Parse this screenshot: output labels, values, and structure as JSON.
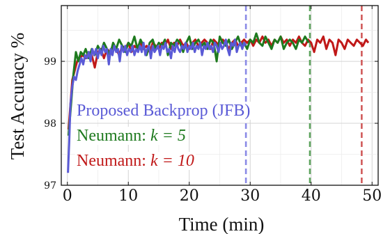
{
  "chart_data": {
    "type": "line",
    "title": "",
    "xlabel": "Time (min)",
    "ylabel": "Test Accuracy %",
    "xlim": [
      -1,
      51
    ],
    "ylim": [
      97,
      99.9
    ],
    "x_ticks": [
      0,
      10,
      20,
      30,
      40,
      50
    ],
    "y_ticks": [
      97,
      98,
      99
    ],
    "grid": true,
    "legend_position": "bottom-left",
    "legend_entries": [
      {
        "prefix": "Proposed Backprop (JFB)",
        "math": "",
        "color": "#5a5ad6"
      },
      {
        "prefix": "Neumann: ",
        "math": "k = 5",
        "color": "#1e7a1e"
      },
      {
        "prefix": "Neumann: ",
        "math": "k = 10",
        "color": "#c01818"
      }
    ],
    "vertical_lines": [
      {
        "x": 29.3,
        "color": "#8a8ae6",
        "series": "Proposed Backprop (JFB)"
      },
      {
        "x": 39.8,
        "color": "#5da35d",
        "series": "Neumann: k = 5"
      },
      {
        "x": 48.3,
        "color": "#d05a5a",
        "series": "Neumann: k = 10"
      }
    ],
    "series": [
      {
        "name": "Neumann: k = 10",
        "color": "#c01818",
        "points": [
          [
            0.2,
            97.9
          ],
          [
            0.5,
            98.3
          ],
          [
            0.8,
            98.7
          ],
          [
            1.2,
            98.85
          ],
          [
            1.6,
            99.0
          ],
          [
            2.0,
            99.05
          ],
          [
            2.5,
            99.1
          ],
          [
            3.0,
            99.05
          ],
          [
            3.5,
            99.15
          ],
          [
            4.0,
            99.1
          ],
          [
            4.5,
            98.9
          ],
          [
            5.0,
            99.15
          ],
          [
            5.5,
            99.2
          ],
          [
            6.0,
            99.05
          ],
          [
            6.5,
            99.2
          ],
          [
            7.0,
            99.15
          ],
          [
            7.5,
            99.25
          ],
          [
            8.0,
            99.2
          ],
          [
            8.5,
            99.1
          ],
          [
            9.0,
            99.25
          ],
          [
            9.5,
            99.2
          ],
          [
            10.0,
            99.3
          ],
          [
            10.5,
            99.15
          ],
          [
            11.0,
            99.25
          ],
          [
            11.5,
            99.2
          ],
          [
            12.0,
            99.3
          ],
          [
            12.5,
            99.2
          ],
          [
            13.0,
            99.25
          ],
          [
            13.5,
            99.15
          ],
          [
            14.0,
            99.3
          ],
          [
            14.5,
            99.25
          ],
          [
            15.0,
            99.2
          ],
          [
            15.5,
            99.3
          ],
          [
            16.0,
            99.25
          ],
          [
            16.5,
            99.35
          ],
          [
            17.0,
            99.2
          ],
          [
            17.5,
            99.3
          ],
          [
            18.0,
            99.25
          ],
          [
            18.5,
            99.35
          ],
          [
            19.0,
            99.25
          ],
          [
            19.5,
            99.3
          ],
          [
            20.0,
            99.2
          ],
          [
            20.5,
            99.3
          ],
          [
            21.0,
            99.35
          ],
          [
            21.5,
            99.25
          ],
          [
            22.0,
            99.3
          ],
          [
            22.5,
            99.35
          ],
          [
            23.0,
            99.3
          ],
          [
            23.5,
            99.2
          ],
          [
            24.0,
            99.35
          ],
          [
            24.5,
            99.3
          ],
          [
            25.0,
            99.25
          ],
          [
            25.5,
            99.35
          ],
          [
            26.0,
            99.3
          ],
          [
            26.5,
            99.2
          ],
          [
            27.0,
            99.3
          ],
          [
            27.5,
            99.35
          ],
          [
            28.0,
            99.25
          ],
          [
            28.5,
            99.3
          ],
          [
            29.0,
            99.35
          ],
          [
            29.5,
            99.3
          ],
          [
            30.0,
            99.35
          ],
          [
            30.5,
            99.25
          ],
          [
            31.0,
            99.35
          ],
          [
            31.5,
            99.3
          ],
          [
            32.0,
            99.4
          ],
          [
            32.5,
            99.3
          ],
          [
            33.0,
            99.35
          ],
          [
            33.5,
            99.25
          ],
          [
            34.0,
            99.35
          ],
          [
            34.5,
            99.3
          ],
          [
            35.0,
            99.4
          ],
          [
            35.5,
            99.3
          ],
          [
            36.0,
            99.35
          ],
          [
            36.5,
            99.25
          ],
          [
            37.0,
            99.35
          ],
          [
            37.5,
            99.3
          ],
          [
            38.0,
            99.4
          ],
          [
            38.5,
            99.3
          ],
          [
            39.0,
            99.25
          ],
          [
            39.5,
            99.35
          ],
          [
            40.0,
            99.3
          ],
          [
            40.5,
            99.15
          ],
          [
            41.0,
            99.35
          ],
          [
            41.5,
            99.3
          ],
          [
            42.0,
            99.4
          ],
          [
            42.5,
            99.2
          ],
          [
            43.0,
            99.35
          ],
          [
            43.5,
            99.3
          ],
          [
            44.0,
            99.1
          ],
          [
            44.5,
            99.35
          ],
          [
            45.0,
            99.3
          ],
          [
            45.5,
            99.2
          ],
          [
            46.0,
            99.35
          ],
          [
            46.5,
            99.3
          ],
          [
            47.0,
            99.25
          ],
          [
            47.5,
            99.35
          ],
          [
            48.0,
            99.3
          ],
          [
            48.5,
            99.25
          ],
          [
            49.0,
            99.35
          ],
          [
            49.4,
            99.3
          ]
        ]
      },
      {
        "name": "Neumann: k = 5",
        "color": "#1e7a1e",
        "points": [
          [
            0.2,
            97.8
          ],
          [
            0.6,
            98.3
          ],
          [
            1.0,
            98.8
          ],
          [
            1.4,
            99.15
          ],
          [
            1.8,
            99.0
          ],
          [
            2.2,
            99.15
          ],
          [
            2.6,
            99.1
          ],
          [
            3.0,
            99.2
          ],
          [
            3.5,
            99.05
          ],
          [
            4.0,
            99.2
          ],
          [
            4.5,
            99.1
          ],
          [
            5.0,
            99.25
          ],
          [
            5.5,
            99.15
          ],
          [
            6.0,
            99.3
          ],
          [
            6.5,
            99.2
          ],
          [
            7.0,
            99.1
          ],
          [
            7.5,
            99.3
          ],
          [
            8.0,
            99.2
          ],
          [
            8.5,
            99.35
          ],
          [
            9.0,
            99.25
          ],
          [
            9.5,
            99.15
          ],
          [
            10.0,
            99.3
          ],
          [
            10.5,
            99.25
          ],
          [
            11.0,
            99.4
          ],
          [
            11.5,
            99.2
          ],
          [
            12.0,
            99.35
          ],
          [
            12.5,
            99.25
          ],
          [
            13.0,
            99.1
          ],
          [
            13.5,
            99.3
          ],
          [
            14.0,
            99.35
          ],
          [
            14.5,
            99.2
          ],
          [
            15.0,
            99.3
          ],
          [
            15.5,
            99.25
          ],
          [
            16.0,
            99.35
          ],
          [
            16.5,
            99.1
          ],
          [
            17.0,
            99.3
          ],
          [
            17.5,
            99.25
          ],
          [
            18.0,
            99.35
          ],
          [
            18.5,
            99.3
          ],
          [
            19.0,
            99.15
          ],
          [
            19.5,
            99.3
          ],
          [
            20.0,
            99.4
          ],
          [
            20.5,
            99.2
          ],
          [
            21.0,
            99.3
          ],
          [
            21.5,
            99.35
          ],
          [
            22.0,
            99.25
          ],
          [
            22.5,
            99.3
          ],
          [
            23.0,
            99.2
          ],
          [
            23.5,
            99.35
          ],
          [
            24.0,
            99.3
          ],
          [
            24.5,
            99.0
          ],
          [
            25.0,
            99.4
          ],
          [
            25.5,
            99.3
          ],
          [
            26.0,
            99.25
          ],
          [
            26.5,
            99.35
          ],
          [
            27.0,
            99.2
          ],
          [
            27.5,
            99.3
          ],
          [
            28.0,
            99.4
          ],
          [
            28.5,
            99.25
          ],
          [
            29.0,
            99.3
          ],
          [
            29.5,
            99.2
          ],
          [
            30.0,
            99.35
          ],
          [
            30.5,
            99.3
          ],
          [
            31.0,
            99.45
          ],
          [
            31.5,
            99.3
          ],
          [
            32.0,
            99.25
          ],
          [
            32.5,
            99.4
          ],
          [
            33.0,
            99.3
          ],
          [
            33.5,
            99.2
          ],
          [
            34.0,
            99.35
          ],
          [
            34.5,
            99.3
          ],
          [
            35.0,
            99.4
          ],
          [
            35.5,
            99.2
          ],
          [
            36.0,
            99.3
          ],
          [
            36.5,
            99.35
          ],
          [
            37.0,
            99.3
          ],
          [
            37.5,
            99.2
          ],
          [
            38.0,
            99.35
          ],
          [
            38.5,
            99.3
          ],
          [
            39.0,
            99.4
          ],
          [
            39.6,
            99.3
          ]
        ]
      },
      {
        "name": "Proposed Backprop (JFB)",
        "color": "#5a5ad6",
        "points": [
          [
            0.1,
            97.2
          ],
          [
            0.3,
            97.7
          ],
          [
            0.5,
            98.3
          ],
          [
            0.8,
            98.6
          ],
          [
            1.1,
            98.75
          ],
          [
            1.4,
            98.7
          ],
          [
            1.7,
            98.85
          ],
          [
            2.0,
            98.95
          ],
          [
            2.3,
            99.05
          ],
          [
            2.6,
            98.95
          ],
          [
            2.9,
            99.1
          ],
          [
            3.2,
            99.05
          ],
          [
            3.5,
            99.15
          ],
          [
            3.8,
            99.0
          ],
          [
            4.1,
            99.2
          ],
          [
            4.4,
            99.1
          ],
          [
            4.7,
            99.2
          ],
          [
            5.0,
            99.05
          ],
          [
            5.3,
            99.2
          ],
          [
            5.6,
            99.1
          ],
          [
            5.9,
            99.25
          ],
          [
            6.2,
            99.15
          ],
          [
            6.5,
            99.2
          ],
          [
            6.8,
            98.95
          ],
          [
            7.1,
            99.2
          ],
          [
            7.4,
            99.1
          ],
          [
            7.7,
            99.25
          ],
          [
            8.0,
            99.15
          ],
          [
            8.3,
            99.2
          ],
          [
            8.6,
            99.0
          ],
          [
            8.9,
            99.25
          ],
          [
            9.2,
            99.15
          ],
          [
            9.5,
            99.25
          ],
          [
            9.8,
            99.1
          ],
          [
            10.1,
            99.2
          ],
          [
            10.4,
            99.15
          ],
          [
            10.7,
            99.25
          ],
          [
            11.0,
            99.1
          ],
          [
            11.3,
            99.2
          ],
          [
            11.6,
            99.15
          ],
          [
            11.9,
            99.25
          ],
          [
            12.2,
            99.15
          ],
          [
            12.5,
            99.3
          ],
          [
            12.8,
            99.1
          ],
          [
            13.1,
            99.2
          ],
          [
            13.4,
            99.25
          ],
          [
            13.7,
            99.05
          ],
          [
            14.0,
            99.25
          ],
          [
            14.3,
            99.15
          ],
          [
            14.6,
            99.2
          ],
          [
            14.9,
            99.25
          ],
          [
            15.2,
            99.1
          ],
          [
            15.5,
            99.25
          ],
          [
            15.8,
            99.2
          ],
          [
            16.1,
            99.3
          ],
          [
            16.4,
            99.15
          ],
          [
            16.7,
            99.2
          ],
          [
            17.0,
            99.05
          ],
          [
            17.3,
            99.25
          ],
          [
            17.6,
            99.15
          ],
          [
            17.9,
            99.3
          ],
          [
            18.2,
            99.2
          ],
          [
            18.5,
            99.15
          ],
          [
            18.8,
            99.25
          ],
          [
            19.1,
            99.2
          ],
          [
            19.4,
            99.3
          ],
          [
            19.7,
            99.15
          ],
          [
            20.0,
            99.25
          ],
          [
            20.3,
            99.2
          ],
          [
            20.6,
            99.3
          ],
          [
            20.9,
            99.15
          ],
          [
            21.2,
            99.25
          ],
          [
            21.5,
            99.2
          ],
          [
            21.8,
            99.3
          ],
          [
            22.1,
            99.1
          ],
          [
            22.4,
            99.25
          ],
          [
            22.7,
            99.2
          ],
          [
            23.0,
            99.3
          ],
          [
            23.3,
            99.2
          ],
          [
            23.6,
            99.25
          ],
          [
            23.9,
            99.15
          ],
          [
            24.2,
            99.3
          ],
          [
            24.5,
            99.25
          ],
          [
            24.8,
            99.15
          ],
          [
            25.1,
            99.3
          ],
          [
            25.4,
            99.2
          ],
          [
            25.7,
            99.25
          ],
          [
            26.0,
            99.35
          ],
          [
            26.3,
            99.2
          ],
          [
            26.6,
            99.1
          ],
          [
            26.9,
            99.3
          ],
          [
            27.2,
            99.25
          ],
          [
            27.5,
            99.35
          ],
          [
            27.8,
            99.15
          ],
          [
            28.1,
            99.25
          ],
          [
            28.4,
            99.3
          ],
          [
            28.7,
            99.2
          ],
          [
            29.0,
            99.3
          ],
          [
            29.2,
            99.25
          ]
        ]
      }
    ]
  }
}
